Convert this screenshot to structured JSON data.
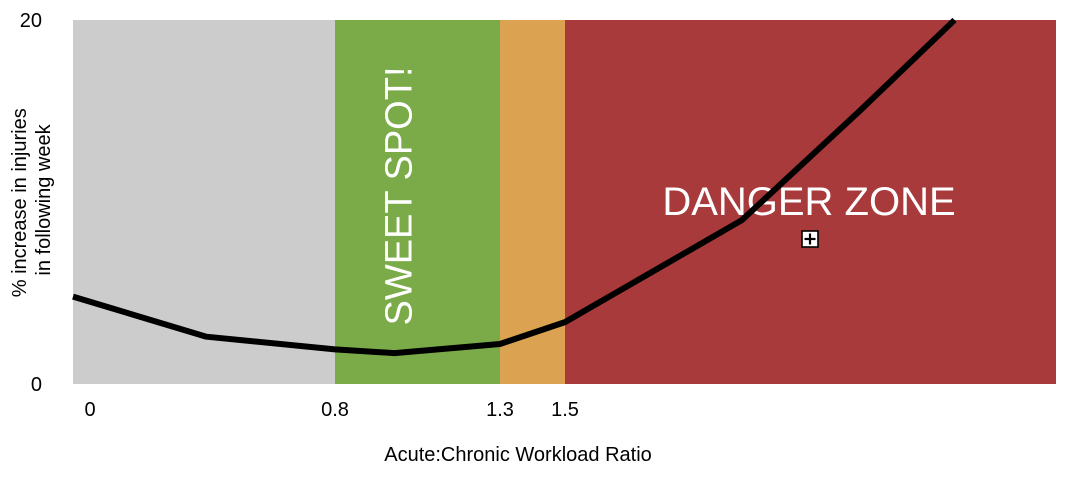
{
  "chart_data": {
    "type": "line",
    "title": "",
    "xlabel": "Acute:Chronic Workload Ratio",
    "ylabel_lines": [
      "% increase in injuries",
      "in following week"
    ],
    "ylim": [
      0,
      20
    ],
    "y_ticks": [
      "0",
      "20"
    ],
    "x_ticks": [
      {
        "value": 0,
        "label": "0"
      },
      {
        "value": 0.8,
        "label": "0.8"
      },
      {
        "value": 1.3,
        "label": "1.3"
      },
      {
        "value": 1.5,
        "label": "1.5"
      }
    ],
    "zones": [
      {
        "name": "grey",
        "from": 0,
        "to": 0.8,
        "color": "#cccccc",
        "label": ""
      },
      {
        "name": "green",
        "from": 0.8,
        "to": 1.3,
        "color": "#7aab48",
        "label": "SWEET SPOT!"
      },
      {
        "name": "orange",
        "from": 1.3,
        "to": 1.5,
        "color": "#dba252",
        "label": ""
      },
      {
        "name": "red",
        "from": 1.5,
        "to": 3.0,
        "color": "#a93a3b",
        "label": "DANGER ZONE"
      }
    ],
    "series": [
      {
        "color": "#000000",
        "points": [
          {
            "x": -0.05,
            "y": 4.8
          },
          {
            "x": 0.38,
            "y": 2.6
          },
          {
            "x": 0.8,
            "y": 1.9
          },
          {
            "x": 0.98,
            "y": 1.7
          },
          {
            "x": 1.3,
            "y": 2.2
          },
          {
            "x": 1.5,
            "y": 3.4
          },
          {
            "x": 2.04,
            "y": 9.0
          },
          {
            "x": 2.4,
            "y": 15.0
          },
          {
            "x": 2.69,
            "y": 20.0
          }
        ]
      }
    ]
  }
}
